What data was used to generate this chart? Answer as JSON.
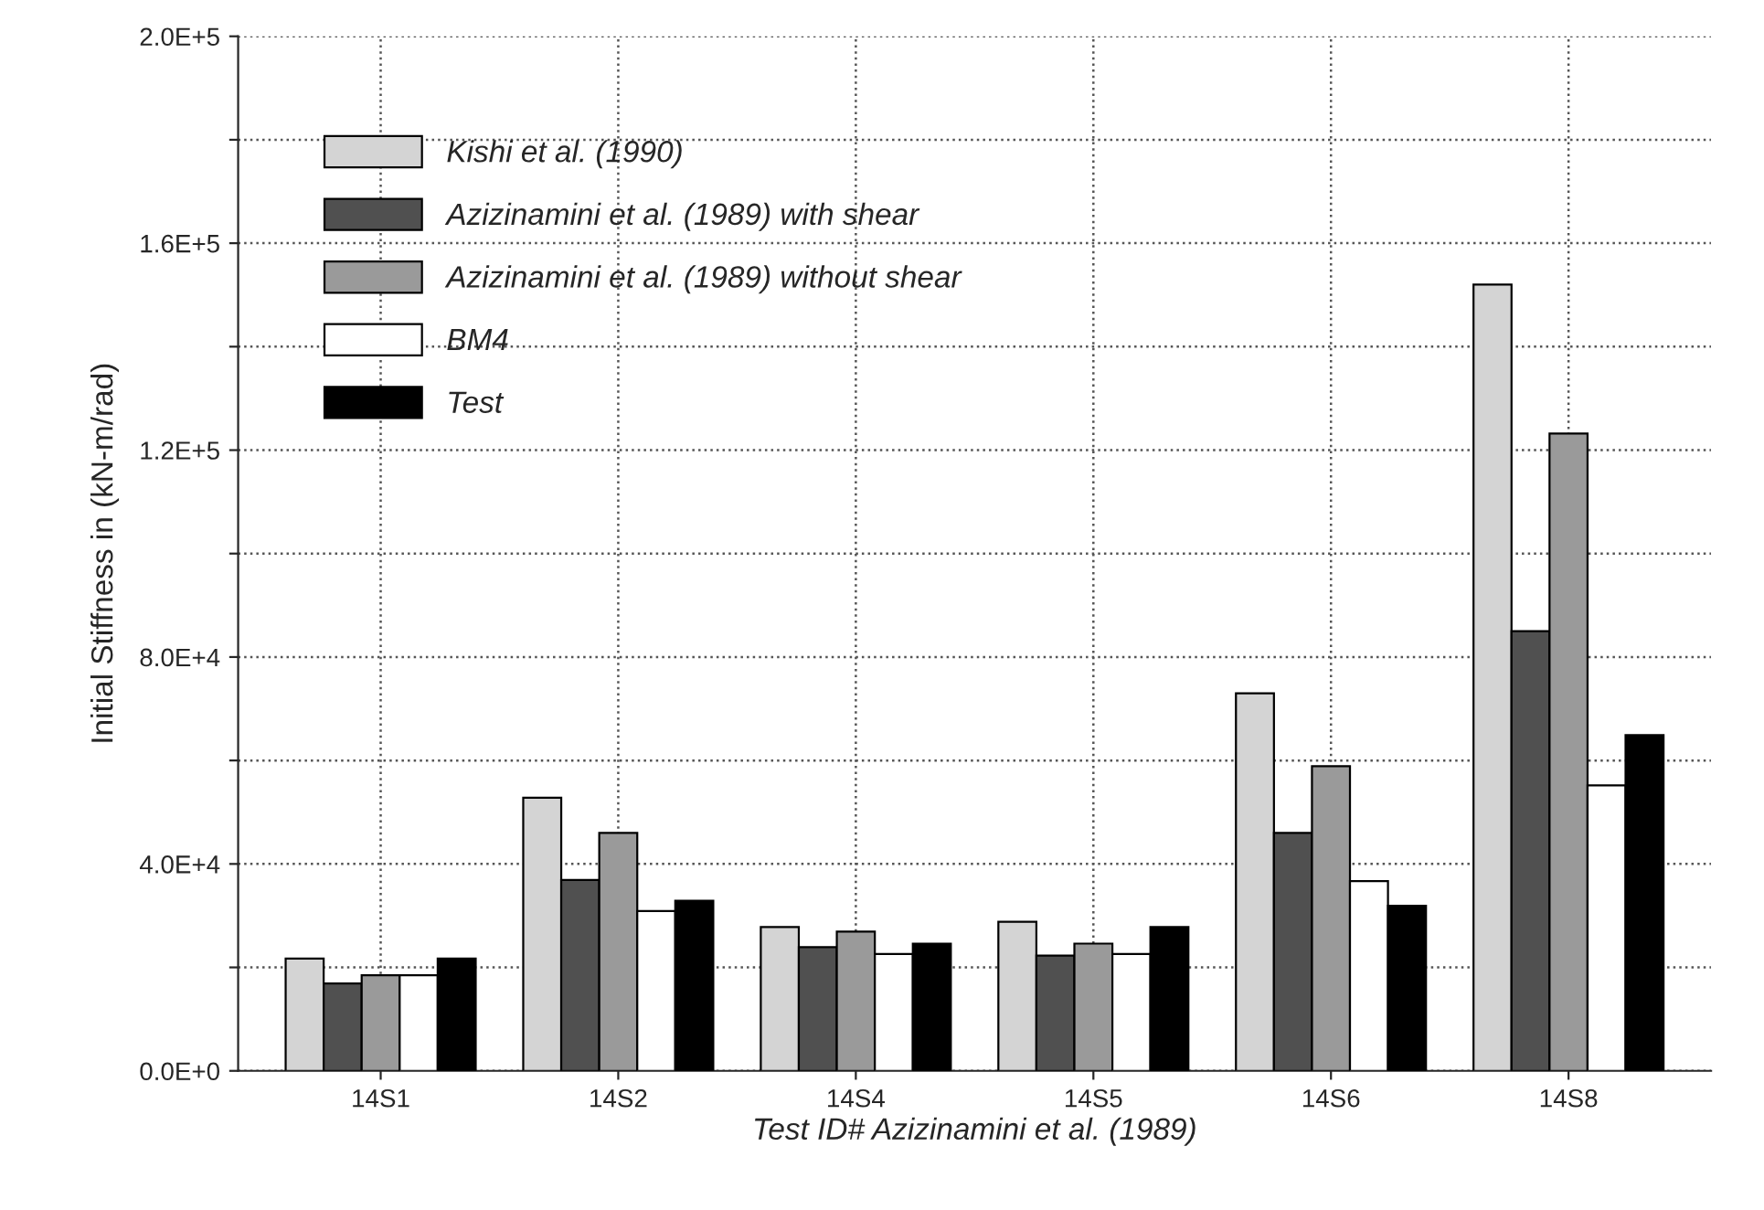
{
  "chart_data": {
    "type": "bar",
    "xlabel": "Test ID# Azizinamini et al. (1989)",
    "ylabel": "Initial Stiffness in (kN-m/rad)",
    "categories": [
      "14S1",
      "14S2",
      "14S4",
      "14S5",
      "14S6",
      "14S8"
    ],
    "series": [
      {
        "name": "Kishi et al. (1990)",
        "color": "#d4d4d4",
        "values": [
          21700,
          52800,
          27800,
          28800,
          73000,
          152000
        ]
      },
      {
        "name": "Azizinamini et al. (1989) with shear",
        "color": "#505050",
        "values": [
          16900,
          36900,
          23900,
          22300,
          46000,
          85000
        ]
      },
      {
        "name": "Azizinamini et al. (1989) without shear",
        "color": "#9a9a9a",
        "values": [
          18500,
          46000,
          26900,
          24600,
          58900,
          123200
        ]
      },
      {
        "name": "BM4",
        "color": "#ffffff",
        "values": [
          18500,
          30900,
          22600,
          22600,
          36700,
          55200
        ]
      },
      {
        "name": "Test",
        "color": "#000000",
        "values": [
          21700,
          32900,
          24600,
          27800,
          31900,
          64900
        ]
      }
    ],
    "ylim": [
      0,
      200000
    ],
    "yticks": [
      {
        "value": 0,
        "label": "0.0E+0"
      },
      {
        "value": 20000,
        "label": null
      },
      {
        "value": 40000,
        "label": "4.0E+4"
      },
      {
        "value": 60000,
        "label": null
      },
      {
        "value": 80000,
        "label": "8.0E+4"
      },
      {
        "value": 100000,
        "label": null
      },
      {
        "value": 120000,
        "label": "1.2E+5"
      },
      {
        "value": 140000,
        "label": null
      },
      {
        "value": 160000,
        "label": "1.6E+5"
      },
      {
        "value": 180000,
        "label": null
      },
      {
        "value": 200000,
        "label": "2.0E+5"
      }
    ],
    "grid": true,
    "legend": "top left"
  }
}
